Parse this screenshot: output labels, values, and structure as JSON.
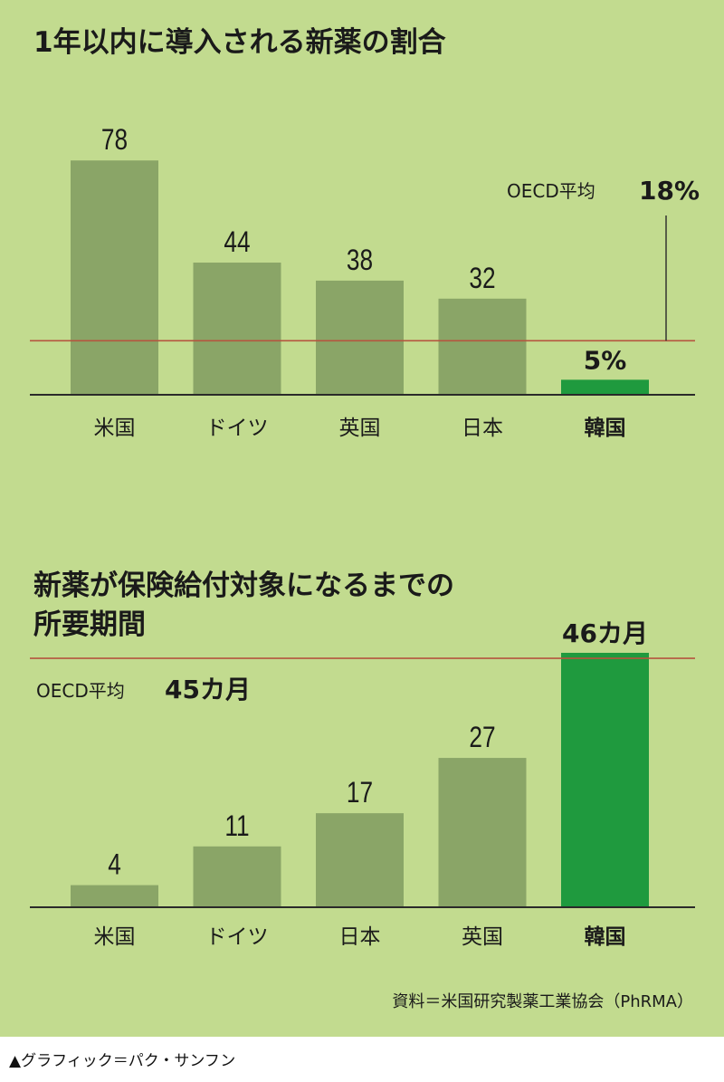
{
  "colors": {
    "background": "#c2db8f",
    "bar": "#8aa567",
    "highlight": "#1f9a3e",
    "oecd_line": "#b5553f",
    "axis": "#2a2a2a",
    "text": "#1a1a1a"
  },
  "chart_data": [
    {
      "type": "bar",
      "title": "1年以内に導入される新薬の割合",
      "categories": [
        "米国",
        "ドイツ",
        "英国",
        "日本",
        "韓国"
      ],
      "values": [
        78,
        44,
        38,
        32,
        5
      ],
      "value_labels": [
        "78",
        "44",
        "38",
        "32",
        "5%"
      ],
      "highlight": "韓国",
      "ylim": [
        0,
        85
      ],
      "reference_line": {
        "label": "OECD平均",
        "value_label": "18%",
        "value": 18
      }
    },
    {
      "type": "bar",
      "title_lines": [
        "新薬が保険給付対象になるまでの",
        "所要期間"
      ],
      "categories": [
        "米国",
        "ドイツ",
        "日本",
        "英国",
        "韓国"
      ],
      "values": [
        4,
        11,
        17,
        27,
        46
      ],
      "value_labels": [
        "4",
        "11",
        "17",
        "27",
        "46カ月"
      ],
      "highlight": "韓国",
      "ylim": [
        0,
        46
      ],
      "reference_line": {
        "label": "OECD平均",
        "value_label": "45カ月",
        "value": 45
      }
    }
  ],
  "source": "資料＝米国研究製薬工業協会（PhRMA）",
  "credit": "▲グラフィック＝パク・サンフン"
}
